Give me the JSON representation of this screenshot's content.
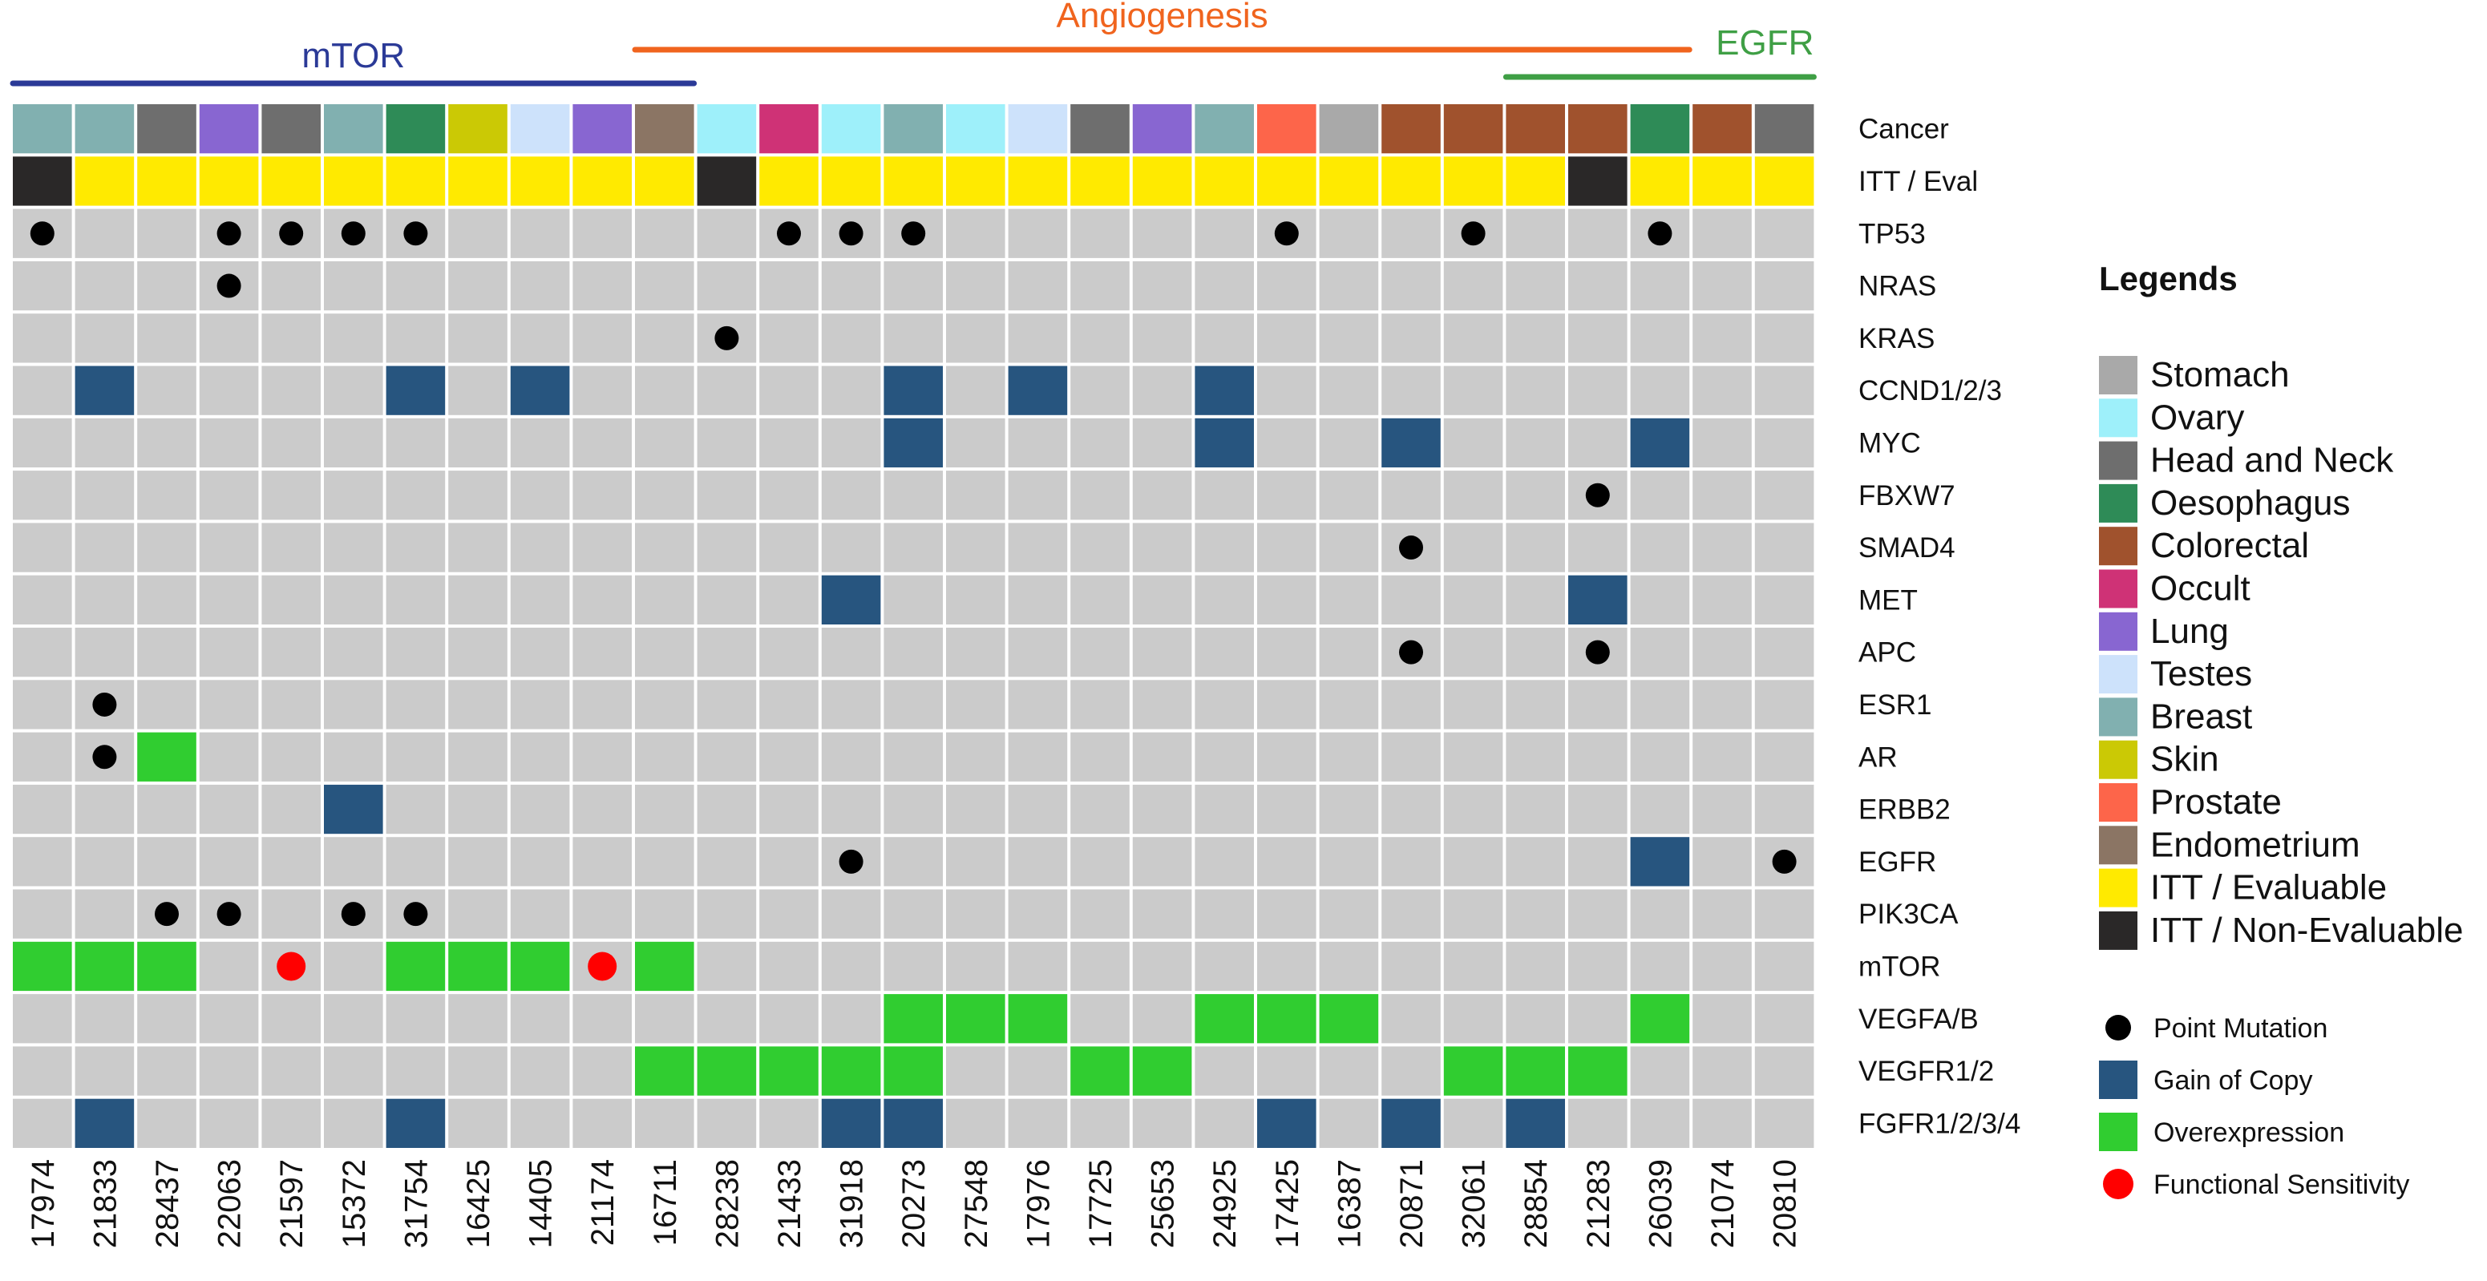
{
  "chart_data": {
    "type": "heatmap",
    "title": "",
    "samples": [
      "17974",
      "21833",
      "28437",
      "22063",
      "21597",
      "15372",
      "31754",
      "16425",
      "14405",
      "21174",
      "16711",
      "28238",
      "21433",
      "31918",
      "20273",
      "27548",
      "17976",
      "17725",
      "25653",
      "24925",
      "17425",
      "16387",
      "20871",
      "32061",
      "28854",
      "21283",
      "26039",
      "21074",
      "20810"
    ],
    "groups": [
      {
        "label": "mTOR",
        "color": "#2b3a97",
        "span": [
          0,
          10
        ]
      },
      {
        "label": "Angiogenesis",
        "color": "#f0641e",
        "span": [
          10,
          26
        ]
      },
      {
        "label": "EGFR",
        "color": "#3f9f45",
        "span": [
          24,
          28
        ]
      }
    ],
    "annotation_rows": [
      {
        "label": "Cancer",
        "key": "cancer"
      },
      {
        "label": "ITT / Eval",
        "key": "itt"
      }
    ],
    "cancer": [
      "Breast",
      "Breast",
      "Head and Neck",
      "Lung",
      "Head and Neck",
      "Breast",
      "Oesophagus",
      "Skin",
      "Testes",
      "Lung",
      "Endometrium",
      "Ovary",
      "Occult",
      "Ovary",
      "Breast",
      "Ovary",
      "Testes",
      "Head and Neck",
      "Lung",
      "Breast",
      "Prostate",
      "Stomach",
      "Colorectal",
      "Colorectal",
      "Colorectal",
      "Colorectal",
      "Oesophagus",
      "Colorectal",
      "Head and Neck"
    ],
    "itt": [
      "ITT / Non-Evaluable",
      "ITT / Evaluable",
      "ITT / Evaluable",
      "ITT / Evaluable",
      "ITT / Evaluable",
      "ITT / Evaluable",
      "ITT / Evaluable",
      "ITT / Evaluable",
      "ITT / Evaluable",
      "ITT / Evaluable",
      "ITT / Evaluable",
      "ITT / Non-Evaluable",
      "ITT / Evaluable",
      "ITT / Evaluable",
      "ITT / Evaluable",
      "ITT / Evaluable",
      "ITT / Evaluable",
      "ITT / Evaluable",
      "ITT / Evaluable",
      "ITT / Evaluable",
      "ITT / Evaluable",
      "ITT / Evaluable",
      "ITT / Evaluable",
      "ITT / Evaluable",
      "ITT / Evaluable",
      "ITT / Non-Evaluable",
      "ITT / Evaluable",
      "ITT / Evaluable",
      "ITT / Evaluable"
    ],
    "genes": [
      "TP53",
      "NRAS",
      "KRAS",
      "CCND1/2/3",
      "MYC",
      "FBXW7",
      "SMAD4",
      "MET",
      "APC",
      "ESR1",
      "AR",
      "ERBB2",
      "EGFR",
      "PIK3CA",
      "mTOR",
      "VEGFA/B",
      "VEGFR1/2",
      "FGFR1/2/3/4"
    ],
    "alterations": {
      "TP53": {
        "point_mutation": [
          0,
          3,
          4,
          5,
          6,
          12,
          13,
          14,
          20,
          23,
          26
        ]
      },
      "NRAS": {
        "point_mutation": [
          3
        ]
      },
      "KRAS": {
        "point_mutation": [
          11
        ]
      },
      "CCND1/2/3": {
        "gain_of_copy": [
          1,
          6,
          8,
          14,
          16,
          19
        ]
      },
      "MYC": {
        "gain_of_copy": [
          14,
          19,
          22,
          26
        ]
      },
      "FBXW7": {
        "point_mutation": [
          25
        ]
      },
      "SMAD4": {
        "point_mutation": [
          22
        ]
      },
      "MET": {
        "gain_of_copy": [
          13,
          25
        ]
      },
      "APC": {
        "point_mutation": [
          22,
          25
        ]
      },
      "ESR1": {
        "point_mutation": [
          1
        ]
      },
      "AR": {
        "point_mutation": [
          1
        ],
        "overexpression": [
          2
        ]
      },
      "ERBB2": {
        "gain_of_copy": [
          5
        ]
      },
      "EGFR": {
        "point_mutation": [
          13,
          28
        ],
        "gain_of_copy": [
          26
        ]
      },
      "PIK3CA": {
        "point_mutation": [
          2,
          3,
          5,
          6
        ]
      },
      "mTOR": {
        "overexpression": [
          0,
          1,
          2,
          6,
          7,
          8,
          10
        ],
        "functional_sensitivity": [
          4,
          9
        ]
      },
      "VEGFA/B": {
        "overexpression": [
          14,
          15,
          16,
          19,
          20,
          21,
          26
        ]
      },
      "VEGFR1/2": {
        "overexpression": [
          10,
          11,
          12,
          13,
          14,
          17,
          18,
          23,
          24,
          25
        ]
      },
      "FGFR1/2/3/4": {
        "gain_of_copy": [
          1,
          6,
          13,
          14,
          20,
          22,
          24
        ]
      }
    },
    "legend": {
      "title": "Legends",
      "fill_items": [
        {
          "label": "Stomach",
          "color": "#a9a9a9"
        },
        {
          "label": "Ovary",
          "color": "#9ef0fa"
        },
        {
          "label": "Head and Neck",
          "color": "#6e6e6e"
        },
        {
          "label": "Oesophagus",
          "color": "#2e8b57"
        },
        {
          "label": "Colorectal",
          "color": "#a0522d"
        },
        {
          "label": "Occult",
          "color": "#cf3276"
        },
        {
          "label": "Lung",
          "color": "#8866d1"
        },
        {
          "label": "Testes",
          "color": "#cde2fb"
        },
        {
          "label": "Breast",
          "color": "#81b0b0"
        },
        {
          "label": "Skin",
          "color": "#cbc905"
        },
        {
          "label": "Prostate",
          "color": "#fd654a"
        },
        {
          "label": "Endometrium",
          "color": "#8b7564"
        },
        {
          "label": "ITT / Evaluable",
          "color": "#ffea00"
        },
        {
          "label": "ITT / Non-Evaluable",
          "color": "#2a2828"
        }
      ],
      "alteration_items": [
        {
          "label": "Point Mutation",
          "kind": "dot",
          "color": "#000000"
        },
        {
          "label": "Gain of Copy",
          "kind": "square",
          "color": "#27557f"
        },
        {
          "label": "Overexpression",
          "kind": "square",
          "color": "#30cd30"
        },
        {
          "label": "Functional Sensitivity",
          "kind": "dot",
          "color": "#ff0000"
        }
      ]
    },
    "background_color": "#cbcbcb"
  }
}
